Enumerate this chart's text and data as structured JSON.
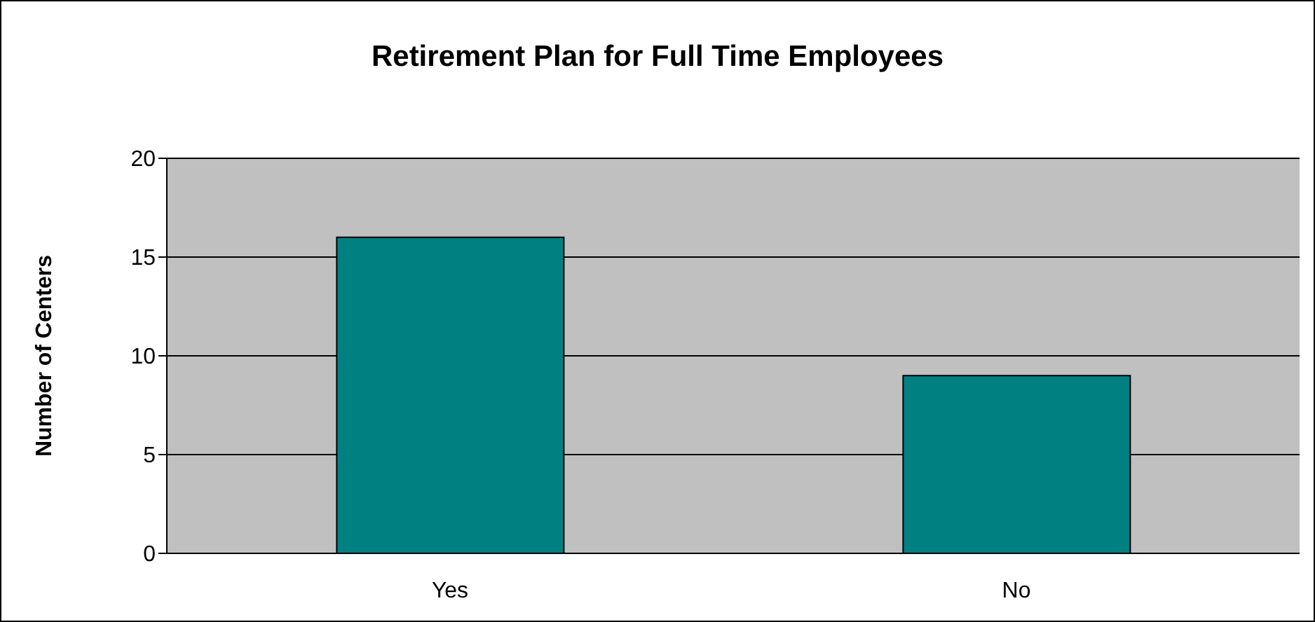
{
  "chart_data": {
    "type": "bar",
    "title": "Retirement Plan for Full Time Employees",
    "ylabel": "Number of Centers",
    "categories": [
      "Yes",
      "No"
    ],
    "values": [
      16,
      9
    ],
    "color": "#008080",
    "ylim": [
      0,
      20
    ],
    "yticks": [
      0,
      5,
      10,
      15,
      20
    ],
    "grid": "y"
  }
}
